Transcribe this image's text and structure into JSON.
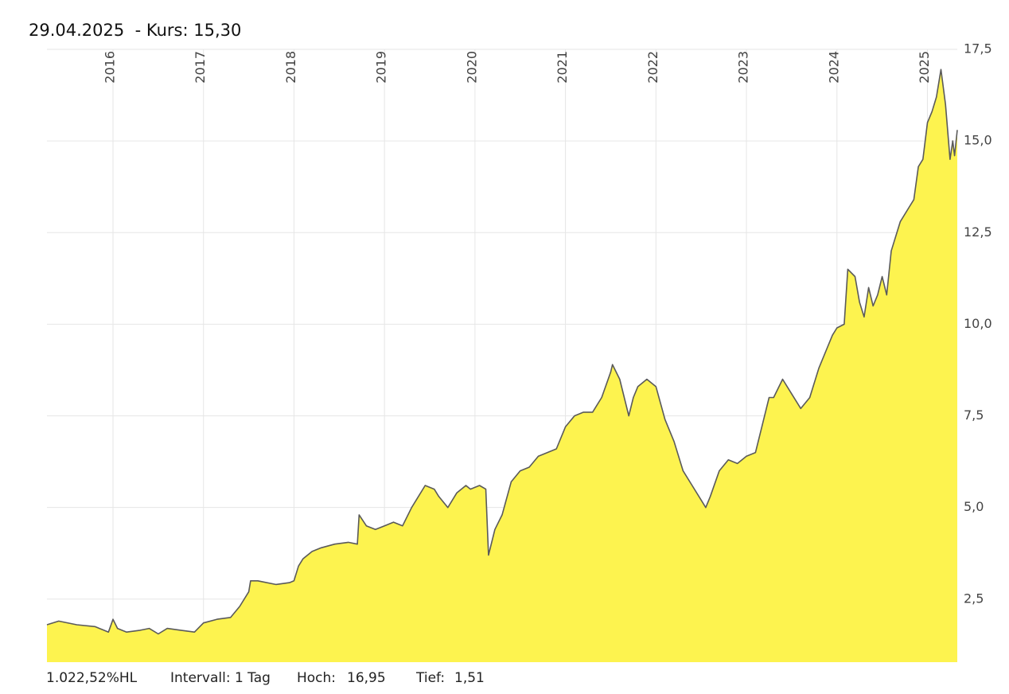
{
  "header": {
    "date": "29.04.2025",
    "kurs_label": "- Kurs:",
    "kurs_value": "15,30"
  },
  "footer": {
    "performance": "1.022,52%HL",
    "interval": "Intervall: 1 Tag",
    "hoch_label": "Hoch:",
    "hoch_value": "16,95",
    "tief_label": "Tief:",
    "tief_value": "1,51"
  },
  "colors": {
    "fill": "#fdf34f",
    "line": "#5a5a5a",
    "grid": "#e6e6e6"
  },
  "chart_data": {
    "type": "area",
    "title": "",
    "xlabel": "",
    "ylabel": "",
    "ylim": [
      0.78,
      17.5
    ],
    "xlim": [
      2015.27,
      2025.33
    ],
    "y_ticks": [
      "2,5",
      "5,0",
      "7,5",
      "10,0",
      "12,5",
      "15,0",
      "17,5"
    ],
    "y_tick_values": [
      2.5,
      5.0,
      7.5,
      10.0,
      12.5,
      15.0,
      17.5
    ],
    "x_ticks": [
      "2016",
      "2017",
      "2018",
      "2019",
      "2020",
      "2021",
      "2022",
      "2023",
      "2024",
      "2025"
    ],
    "x_tick_values": [
      2016,
      2017,
      2018,
      2019,
      2020,
      2021,
      2022,
      2023,
      2024,
      2025
    ],
    "grid": true,
    "legend": "none",
    "y_axis_position": "right",
    "series": [
      {
        "x": [
          2015.27,
          2015.4,
          2015.6,
          2015.8,
          2015.95,
          2016.0,
          2016.05,
          2016.15,
          2016.3,
          2016.4,
          2016.5,
          2016.6,
          2016.75,
          2016.9,
          2017.0,
          2017.15,
          2017.3,
          2017.4,
          2017.5,
          2017.52,
          2017.6,
          2017.8,
          2017.95,
          2018.0,
          2018.05,
          2018.1,
          2018.2,
          2018.3,
          2018.45,
          2018.6,
          2018.7,
          2018.72,
          2018.8,
          2018.9,
          2019.0,
          2019.1,
          2019.2,
          2019.3,
          2019.35,
          2019.45,
          2019.55,
          2019.6,
          2019.7,
          2019.8,
          2019.9,
          2019.95,
          2020.05,
          2020.12,
          2020.15,
          2020.22,
          2020.3,
          2020.4,
          2020.5,
          2020.6,
          2020.7,
          2020.8,
          2020.9,
          2021.0,
          2021.1,
          2021.2,
          2021.3,
          2021.4,
          2021.5,
          2021.52,
          2021.6,
          2021.7,
          2021.75,
          2021.8,
          2021.9,
          2022.0,
          2022.1,
          2022.2,
          2022.3,
          2022.4,
          2022.5,
          2022.55,
          2022.6,
          2022.7,
          2022.8,
          2022.9,
          2023.0,
          2023.1,
          2023.15,
          2023.25,
          2023.3,
          2023.4,
          2023.5,
          2023.6,
          2023.7,
          2023.8,
          2023.9,
          2023.95,
          2024.0,
          2024.08,
          2024.12,
          2024.2,
          2024.25,
          2024.3,
          2024.35,
          2024.4,
          2024.45,
          2024.5,
          2024.55,
          2024.6,
          2024.7,
          2024.8,
          2024.85,
          2024.9,
          2024.95,
          2025.0,
          2025.05,
          2025.1,
          2025.15,
          2025.2,
          2025.25,
          2025.28,
          2025.3,
          2025.33
        ],
        "y": [
          1.8,
          1.9,
          1.8,
          1.75,
          1.6,
          1.95,
          1.7,
          1.6,
          1.65,
          1.7,
          1.55,
          1.7,
          1.65,
          1.6,
          1.85,
          1.95,
          2.0,
          2.3,
          2.7,
          3.0,
          3.0,
          2.9,
          2.95,
          3.0,
          3.4,
          3.6,
          3.8,
          3.9,
          4.0,
          4.05,
          4.0,
          4.8,
          4.5,
          4.4,
          4.5,
          4.6,
          4.5,
          5.0,
          5.2,
          5.6,
          5.5,
          5.3,
          5.0,
          5.4,
          5.6,
          5.5,
          5.6,
          5.5,
          3.7,
          4.4,
          4.8,
          5.7,
          6.0,
          6.1,
          6.4,
          6.5,
          6.6,
          7.2,
          7.5,
          7.6,
          7.6,
          8.0,
          8.7,
          8.9,
          8.5,
          7.5,
          8.0,
          8.3,
          8.5,
          8.3,
          7.4,
          6.8,
          6.0,
          5.6,
          5.2,
          5.0,
          5.3,
          6.0,
          6.3,
          6.2,
          6.4,
          6.5,
          7.0,
          8.0,
          8.0,
          8.5,
          8.1,
          7.7,
          8.0,
          8.8,
          9.4,
          9.7,
          9.9,
          10.0,
          11.5,
          11.3,
          10.6,
          10.2,
          11.0,
          10.5,
          10.8,
          11.3,
          10.8,
          12.0,
          12.8,
          13.2,
          13.4,
          14.3,
          14.5,
          15.5,
          15.8,
          16.2,
          16.95,
          16.0,
          14.5,
          15.0,
          14.6,
          15.3
        ]
      }
    ]
  }
}
